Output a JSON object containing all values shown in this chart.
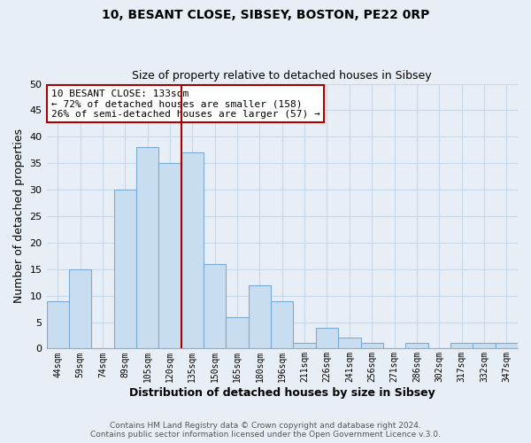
{
  "title": "10, BESANT CLOSE, SIBSEY, BOSTON, PE22 0RP",
  "subtitle": "Size of property relative to detached houses in Sibsey",
  "xlabel": "Distribution of detached houses by size in Sibsey",
  "ylabel": "Number of detached properties",
  "footer_line1": "Contains HM Land Registry data © Crown copyright and database right 2024.",
  "footer_line2": "Contains public sector information licensed under the Open Government Licence v.3.0.",
  "bins": [
    "44sqm",
    "59sqm",
    "74sqm",
    "89sqm",
    "105sqm",
    "120sqm",
    "135sqm",
    "150sqm",
    "165sqm",
    "180sqm",
    "196sqm",
    "211sqm",
    "226sqm",
    "241sqm",
    "256sqm",
    "271sqm",
    "286sqm",
    "302sqm",
    "317sqm",
    "332sqm",
    "347sqm"
  ],
  "values": [
    9,
    15,
    0,
    30,
    38,
    35,
    37,
    16,
    6,
    12,
    9,
    1,
    4,
    2,
    1,
    0,
    1,
    0,
    1,
    1,
    1
  ],
  "bar_color": "#c8ddf0",
  "bar_edge_color": "#7aacd4",
  "vline_after_index": 5,
  "vline_color": "#aa0000",
  "annotation_title": "10 BESANT CLOSE: 133sqm",
  "annotation_line1": "← 72% of detached houses are smaller (158)",
  "annotation_line2": "26% of semi-detached houses are larger (57) →",
  "annotation_box_color": "#ffffff",
  "annotation_box_edge": "#aa0000",
  "ylim": [
    0,
    50
  ],
  "yticks": [
    0,
    5,
    10,
    15,
    20,
    25,
    30,
    35,
    40,
    45,
    50
  ],
  "grid_color": "#c8d8e8",
  "background_color": "#e8eef5",
  "plot_bg_color": "#e8eef5"
}
